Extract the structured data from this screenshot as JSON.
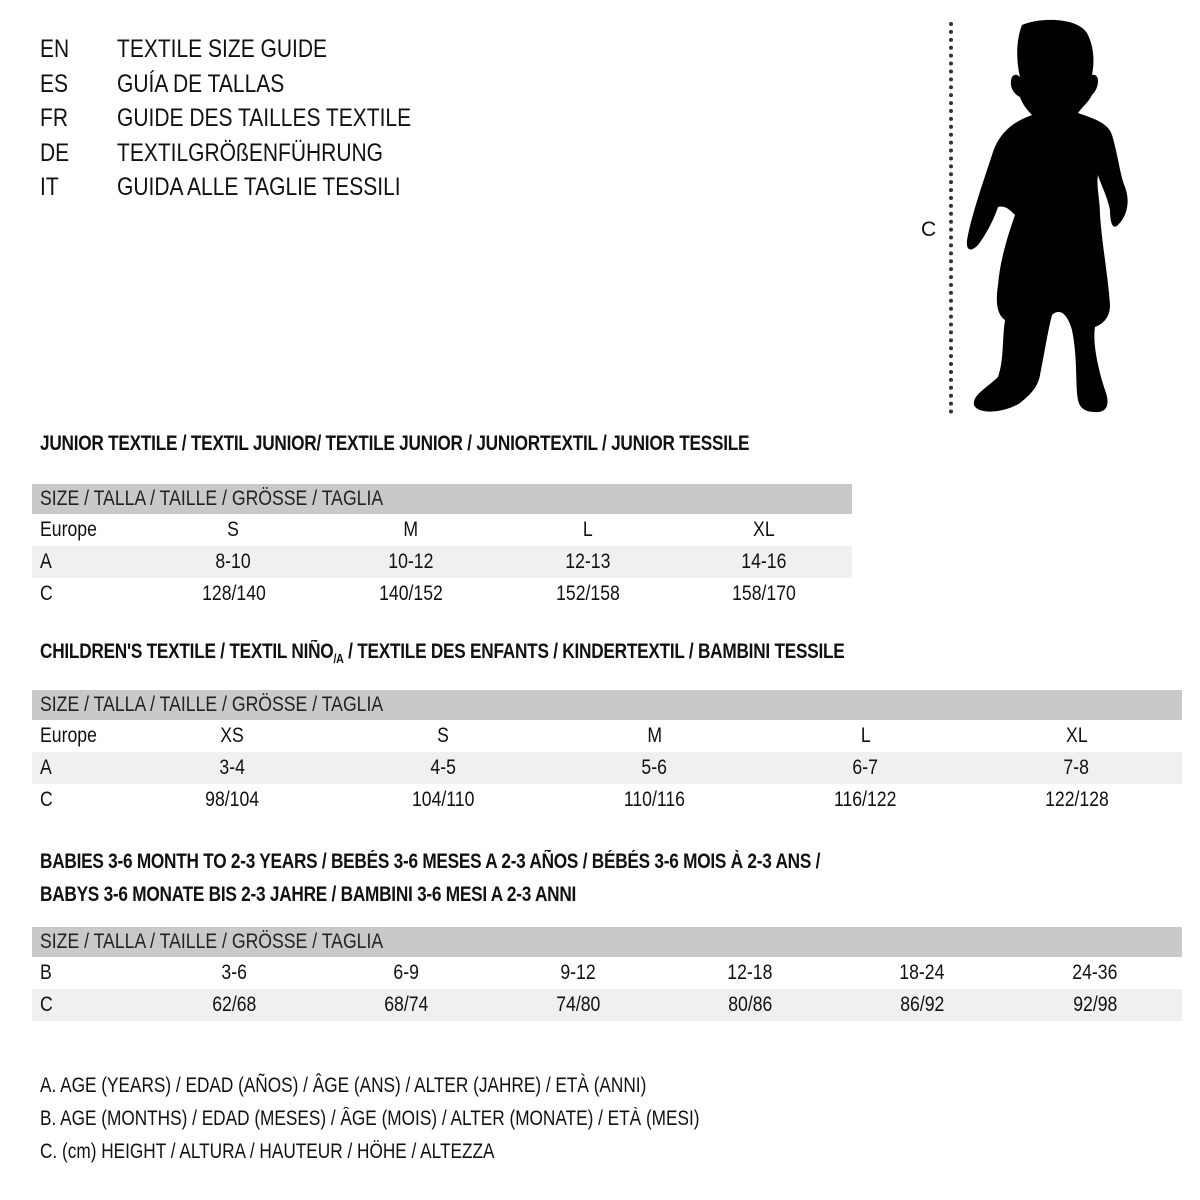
{
  "languages": [
    {
      "code": "EN",
      "title": "TEXTILE SIZE GUIDE"
    },
    {
      "code": "ES",
      "title": "GUÍA DE TALLAS"
    },
    {
      "code": "FR",
      "title": "GUIDE DES TAILLES TEXTILE"
    },
    {
      "code": "DE",
      "title": "TEXTILGRÖßENFÜHRUNG"
    },
    {
      "code": "IT",
      "title": "GUIDA ALLE TAGLIE TESSILI"
    }
  ],
  "figure": {
    "height_label": "C",
    "icon": "child-silhouette"
  },
  "size_header": "SIZE / TALLA / TAILLE / GRÖSSE / TAGLIA",
  "junior": {
    "heading": "JUNIOR TEXTILE / TEXTIL JUNIOR/ TEXTILE JUNIOR / JUNIORTEXTIL / JUNIOR TESSILE",
    "rows": [
      {
        "label": "Europe",
        "values": [
          "S",
          "M",
          "L",
          "XL"
        ]
      },
      {
        "label": "A",
        "values": [
          "8-10",
          "10-12",
          "12-13",
          "14-16"
        ]
      },
      {
        "label": "C",
        "values": [
          "128/140",
          "140/152",
          "152/158",
          "158/170"
        ]
      }
    ]
  },
  "children": {
    "heading_pre": "CHILDREN'S TEXTILE / TEXTIL NIÑO",
    "heading_sub": "/A",
    "heading_post": " / TEXTILE DES ENFANTS / KINDERTEXTIL / BAMBINI TESSILE",
    "rows": [
      {
        "label": "Europe",
        "values": [
          "XS",
          "S",
          "M",
          "L",
          "XL"
        ]
      },
      {
        "label": "A",
        "values": [
          "3-4",
          "4-5",
          "5-6",
          "6-7",
          "7-8"
        ]
      },
      {
        "label": "C",
        "values": [
          "98/104",
          "104/110",
          "110/116",
          "116/122",
          "122/128"
        ]
      }
    ]
  },
  "babies": {
    "heading_line1": "BABIES 3-6 MONTH TO 2-3 YEARS / BEBÉS 3-6 MESES A 2-3 AÑOS / BÉBÉS 3-6 MOIS À 2-3 ANS /",
    "heading_line2": "BABYS 3-6 MONATE BIS 2-3 JAHRE / BAMBINI 3-6 MESI A 2-3 ANNI",
    "rows": [
      {
        "label": "B",
        "values": [
          "3-6",
          "6-9",
          "9-12",
          "12-18",
          "18-24",
          "24-36"
        ]
      },
      {
        "label": "C",
        "values": [
          "62/68",
          "68/74",
          "74/80",
          "80/86",
          "86/92",
          "92/98"
        ]
      }
    ]
  },
  "legend": [
    "A. AGE (YEARS) / EDAD (AÑOS) / ÂGE (ANS) / ALTER (JAHRE) / ETÀ (ANNI)",
    "B. AGE (MONTHS) / EDAD (MESES) / ÂGE (MOIS) / ALTER (MONATE) / ETÀ (MESI)",
    "C. (cm) HEIGHT / ALTURA / HAUTEUR / HÖHE / ALTEZZA"
  ]
}
